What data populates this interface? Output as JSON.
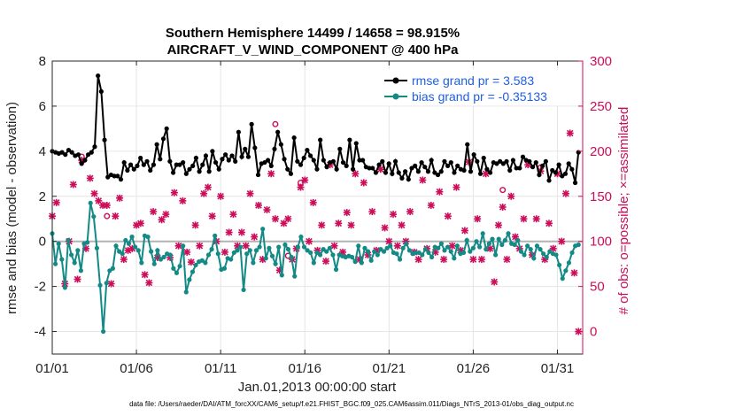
{
  "chart_data": {
    "type": "line",
    "title_line1": "Southern Hemisphere 14499 / 14658 = 98.915%",
    "title_line2": "AIRCRAFT_V_WIND_COMPONENT @ 400 hPa",
    "xlabel": "Jan.01,2013 00:00:00 start",
    "ylabel_left": "rmse and bias (model - observation)",
    "ylabel_right": "# of obs: o=possible; ×=assimilated",
    "footnote": "data file: /Users/raeder/DAI/ATM_forcXX/CAM6_setup/f.e21.FHIST_BGC.f09_025.CAM6assim.011/Diags_NTrS_2013-01/obs_diag_output.nc",
    "x_range_days": [
      0,
      31.5
    ],
    "xticks": [
      {
        "day": 0,
        "label": "01/01"
      },
      {
        "day": 5,
        "label": "01/06"
      },
      {
        "day": 10,
        "label": "01/11"
      },
      {
        "day": 15,
        "label": "01/16"
      },
      {
        "day": 20,
        "label": "01/21"
      },
      {
        "day": 25,
        "label": "01/26"
      },
      {
        "day": 30,
        "label": "01/31"
      }
    ],
    "ylim_left": [
      -5,
      8
    ],
    "yticks_left": [
      -4,
      -2,
      0,
      2,
      4,
      6,
      8
    ],
    "ylim_right": [
      -25,
      300
    ],
    "yticks_right": [
      0,
      50,
      100,
      150,
      200,
      250,
      300
    ],
    "zero_line": 0,
    "legend": [
      {
        "label": "rmse grand pr = 3.583",
        "color": "#000000"
      },
      {
        "label": "bias grand pr = -0.35133",
        "color": "#138a86"
      }
    ],
    "colors": {
      "rmse": "#000000",
      "bias": "#138a86",
      "obs": "#cc0e5a",
      "zero": "#b4b4b4"
    },
    "series": [
      {
        "name": "rmse",
        "values": [
          4.0,
          3.95,
          3.9,
          3.95,
          3.85,
          4.05,
          3.95,
          3.8,
          3.85,
          3.45,
          3.6,
          3.85,
          3.95,
          4.2,
          7.35,
          6.65,
          4.5,
          2.85,
          2.95,
          2.9,
          2.9,
          2.75,
          3.5,
          3.15,
          3.4,
          3.2,
          3.35,
          3.7,
          3.4,
          3.55,
          3.15,
          3.4,
          4.3,
          3.65,
          4.55,
          5.0,
          3.55,
          3.05,
          3.4,
          3.4,
          3.5,
          3.0,
          3.2,
          3.35,
          3.7,
          3.1,
          3.4,
          3.8,
          3.1,
          4.0,
          3.5,
          3.2,
          3.65,
          3.85,
          3.6,
          3.8,
          3.55,
          4.85,
          3.75,
          4.1,
          3.75,
          5.2,
          4.15,
          2.95,
          3.45,
          3.5,
          3.6,
          3.35,
          4.1,
          4.85,
          4.3,
          3.65,
          3.2,
          3.0,
          4.6,
          3.55,
          3.4,
          3.7,
          4.05,
          3.8,
          3.6,
          3.2,
          4.5,
          3.6,
          3.3,
          3.5,
          3.55,
          3.2,
          4.1,
          3.5,
          3.35,
          4.5,
          3.2,
          4.35,
          3.6,
          3.6,
          3.3,
          3.25,
          3.25,
          3.05,
          3.4,
          3.55,
          3.05,
          3.45,
          3.0,
          3.55,
          3.05,
          2.8,
          3.1,
          2.75,
          3.25,
          3.35,
          3.1,
          3.5,
          3.3,
          3.1,
          3.6,
          3.05,
          2.95,
          3.1,
          3.55,
          3.35,
          3.5,
          3.05,
          3.35,
          3.2,
          3.15,
          4.3,
          3.1,
          3.85,
          3.55,
          3.0,
          3.7,
          3.2,
          3.05,
          3.5,
          3.45,
          3.55,
          3.45,
          3.55,
          3.15,
          3.6,
          3.25,
          3.25,
          3.75,
          3.6,
          3.55,
          3.3,
          3.5,
          2.95,
          3.35,
          3.55,
          2.7,
          3.15,
          3.05,
          3.4,
          2.9,
          3.0,
          3.45,
          3.2,
          2.6,
          3.95
        ]
      },
      {
        "name": "bias",
        "values": [
          0.35,
          -1.0,
          -0.1,
          -0.8,
          -2.05,
          0.05,
          -0.6,
          -0.95,
          -0.4,
          -1.3,
          -0.1,
          -0.05,
          1.7,
          1.1,
          -0.3,
          -1.95,
          -4.0,
          -1.85,
          -1.3,
          -1.2,
          -0.2,
          -0.45,
          -0.55,
          0.05,
          -0.1,
          0.2,
          -0.25,
          -0.4,
          -0.95,
          0.25,
          0.2,
          -0.45,
          -1.0,
          -0.4,
          -0.8,
          -0.7,
          -0.55,
          -0.6,
          -1.2,
          -1.4,
          -1.1,
          -0.2,
          -2.25,
          -1.7,
          -1.35,
          -1.05,
          -0.9,
          -0.85,
          -0.95,
          -0.6,
          -0.35,
          0.25,
          -0.55,
          -1.25,
          -1.2,
          -0.75,
          -0.8,
          -0.5,
          -0.4,
          -0.25,
          -2.15,
          -0.55,
          -0.4,
          -0.95,
          -0.4,
          -0.25,
          0.55,
          -0.75,
          -0.3,
          -0.65,
          -1.0,
          -0.25,
          -1.5,
          -0.15,
          -0.35,
          -0.7,
          -1.55,
          -0.25,
          0.2,
          -0.25,
          -0.4,
          -0.5,
          -0.95,
          -0.5,
          -0.6,
          -0.35,
          -0.45,
          -0.3,
          -0.6,
          -1.25,
          -0.6,
          -0.65,
          -0.7,
          -0.65,
          -0.7,
          -0.9,
          -0.2,
          -0.95,
          -0.3,
          -0.45,
          -0.85,
          -0.45,
          -0.6,
          -0.35,
          -0.45,
          -0.3,
          -0.2,
          -0.5,
          -0.55,
          -0.8,
          -0.3,
          -0.1,
          -0.4,
          -0.55,
          -0.5,
          -0.5,
          -0.6,
          -0.35,
          -0.5,
          -0.7,
          -0.25,
          -0.3,
          -0.1,
          -0.4,
          -0.25,
          -0.45,
          -0.75,
          -0.2,
          -0.55,
          -0.5,
          0.05,
          -0.45,
          -0.3,
          0.0,
          -0.25,
          0.35,
          -0.35,
          -0.1,
          0.1,
          -0.6,
          0.1,
          -0.15,
          0.05,
          0.35,
          -0.1,
          -0.15,
          0.05,
          -0.45,
          -0.6,
          -0.2,
          -0.35,
          -0.75,
          -0.2,
          -0.35,
          -0.55,
          -0.7,
          -0.45,
          -0.55,
          -0.6,
          -1.05,
          -1.65,
          -1.3,
          -0.95,
          -0.5,
          -0.2,
          -0.15
        ]
      }
    ],
    "obs_assimilated": [
      {
        "day": 0.0,
        "n": 128
      },
      {
        "day": 0.25,
        "n": 143
      },
      {
        "day": 0.75,
        "n": 53
      },
      {
        "day": 1.0,
        "n": 100
      },
      {
        "day": 1.25,
        "n": 163
      },
      {
        "day": 1.5,
        "n": 58
      },
      {
        "day": 1.75,
        "n": 190
      },
      {
        "day": 2.0,
        "n": 92
      },
      {
        "day": 2.25,
        "n": 170
      },
      {
        "day": 2.5,
        "n": 153
      },
      {
        "day": 2.75,
        "n": 145
      },
      {
        "day": 3.0,
        "n": 140
      },
      {
        "day": 3.25,
        "n": 140
      },
      {
        "day": 3.5,
        "n": 53
      },
      {
        "day": 3.75,
        "n": 128
      },
      {
        "day": 4.0,
        "n": 148
      },
      {
        "day": 4.25,
        "n": 80
      },
      {
        "day": 4.5,
        "n": 90
      },
      {
        "day": 4.75,
        "n": 92
      },
      {
        "day": 5.0,
        "n": 118
      },
      {
        "day": 5.25,
        "n": 120
      },
      {
        "day": 5.5,
        "n": 63
      },
      {
        "day": 5.75,
        "n": 54
      },
      {
        "day": 6.0,
        "n": 133
      },
      {
        "day": 6.25,
        "n": 82
      },
      {
        "day": 6.5,
        "n": 124
      },
      {
        "day": 6.75,
        "n": 130
      },
      {
        "day": 7.0,
        "n": 82
      },
      {
        "day": 7.25,
        "n": 154
      },
      {
        "day": 7.5,
        "n": 95
      },
      {
        "day": 7.75,
        "n": 145
      },
      {
        "day": 8.0,
        "n": 88
      },
      {
        "day": 8.25,
        "n": 77
      },
      {
        "day": 8.5,
        "n": 118
      },
      {
        "day": 8.75,
        "n": 95
      },
      {
        "day": 9.0,
        "n": 153
      },
      {
        "day": 9.25,
        "n": 160
      },
      {
        "day": 9.5,
        "n": 128
      },
      {
        "day": 9.75,
        "n": 100
      },
      {
        "day": 10.0,
        "n": 150
      },
      {
        "day": 10.25,
        "n": 88
      },
      {
        "day": 10.5,
        "n": 110
      },
      {
        "day": 10.75,
        "n": 130
      },
      {
        "day": 11.0,
        "n": 95
      },
      {
        "day": 11.25,
        "n": 110
      },
      {
        "day": 11.5,
        "n": 95
      },
      {
        "day": 11.75,
        "n": 153
      },
      {
        "day": 12.0,
        "n": 105
      },
      {
        "day": 12.25,
        "n": 140
      },
      {
        "day": 12.5,
        "n": 80
      },
      {
        "day": 12.75,
        "n": 135
      },
      {
        "day": 13.0,
        "n": 175
      },
      {
        "day": 13.25,
        "n": 125
      },
      {
        "day": 13.5,
        "n": 68
      },
      {
        "day": 13.75,
        "n": 120
      },
      {
        "day": 14.0,
        "n": 125
      },
      {
        "day": 14.25,
        "n": 80
      },
      {
        "day": 14.5,
        "n": 92
      },
      {
        "day": 14.75,
        "n": 160
      },
      {
        "day": 15.0,
        "n": 168
      },
      {
        "day": 15.25,
        "n": 100
      },
      {
        "day": 15.5,
        "n": 143
      },
      {
        "day": 15.75,
        "n": 90
      },
      {
        "day": 16.0,
        "n": 118
      },
      {
        "day": 16.25,
        "n": 78
      },
      {
        "day": 16.5,
        "n": 185
      },
      {
        "day": 16.75,
        "n": 95
      },
      {
        "day": 17.0,
        "n": 120
      },
      {
        "day": 17.25,
        "n": 88
      },
      {
        "day": 17.5,
        "n": 132
      },
      {
        "day": 17.75,
        "n": 118
      },
      {
        "day": 18.0,
        "n": 175
      },
      {
        "day": 18.25,
        "n": 80
      },
      {
        "day": 18.5,
        "n": 165
      },
      {
        "day": 18.75,
        "n": 85
      },
      {
        "day": 19.0,
        "n": 133
      },
      {
        "day": 19.25,
        "n": 90
      },
      {
        "day": 19.5,
        "n": 180
      },
      {
        "day": 19.75,
        "n": 115
      },
      {
        "day": 20.0,
        "n": 100
      },
      {
        "day": 20.25,
        "n": 130
      },
      {
        "day": 20.5,
        "n": 95
      },
      {
        "day": 20.75,
        "n": 118
      },
      {
        "day": 21.0,
        "n": 100
      },
      {
        "day": 21.25,
        "n": 133
      },
      {
        "day": 21.5,
        "n": 88
      },
      {
        "day": 21.75,
        "n": 80
      },
      {
        "day": 22.0,
        "n": 168
      },
      {
        "day": 22.25,
        "n": 92
      },
      {
        "day": 22.5,
        "n": 140
      },
      {
        "day": 22.75,
        "n": 88
      },
      {
        "day": 23.0,
        "n": 155
      },
      {
        "day": 23.25,
        "n": 80
      },
      {
        "day": 23.5,
        "n": 128
      },
      {
        "day": 23.75,
        "n": 95
      },
      {
        "day": 24.0,
        "n": 160
      },
      {
        "day": 24.25,
        "n": 90
      },
      {
        "day": 24.5,
        "n": 112
      },
      {
        "day": 24.75,
        "n": 188
      },
      {
        "day": 25.0,
        "n": 80
      },
      {
        "day": 25.25,
        "n": 125
      },
      {
        "day": 25.5,
        "n": 80
      },
      {
        "day": 25.75,
        "n": 175
      },
      {
        "day": 26.0,
        "n": 92
      },
      {
        "day": 26.25,
        "n": 55
      },
      {
        "day": 26.5,
        "n": 118
      },
      {
        "day": 26.75,
        "n": 138
      },
      {
        "day": 27.0,
        "n": 80
      },
      {
        "day": 27.25,
        "n": 150
      },
      {
        "day": 27.5,
        "n": 105
      },
      {
        "day": 27.75,
        "n": 92
      },
      {
        "day": 28.0,
        "n": 125
      },
      {
        "day": 28.25,
        "n": 185
      },
      {
        "day": 28.5,
        "n": 85
      },
      {
        "day": 28.75,
        "n": 125
      },
      {
        "day": 29.0,
        "n": 178
      },
      {
        "day": 29.25,
        "n": 80
      },
      {
        "day": 29.5,
        "n": 120
      },
      {
        "day": 29.75,
        "n": 92
      },
      {
        "day": 30.0,
        "n": 175
      },
      {
        "day": 30.25,
        "n": 100
      },
      {
        "day": 30.5,
        "n": 153
      },
      {
        "day": 30.75,
        "n": 220
      },
      {
        "day": 31.0,
        "n": 65
      },
      {
        "day": 31.25,
        "n": 0
      }
    ],
    "obs_possible_only": [
      {
        "day": 1.75,
        "n": 194
      },
      {
        "day": 3.25,
        "n": 128
      },
      {
        "day": 13.25,
        "n": 230
      },
      {
        "day": 14.75,
        "n": 165
      },
      {
        "day": 14.0,
        "n": 84
      },
      {
        "day": 26.75,
        "n": 157
      },
      {
        "day": 29.0,
        "n": 182
      }
    ]
  }
}
